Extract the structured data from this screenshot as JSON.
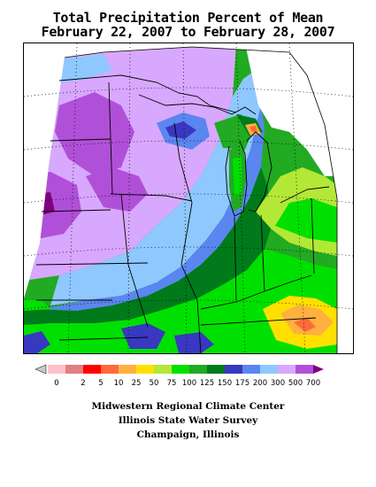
{
  "title": {
    "line1": "Total Precipitation Percent of Mean",
    "line2": "February 22, 2007 to February 28, 2007"
  },
  "legend": {
    "items": [
      {
        "label": "0",
        "color": "#ffc0cb"
      },
      {
        "label": "2",
        "color": "#e08080"
      },
      {
        "label": "5",
        "color": "#ff0000"
      },
      {
        "label": "10",
        "color": "#ff6a3a"
      },
      {
        "label": "25",
        "color": "#ffb040"
      },
      {
        "label": "50",
        "color": "#ffe000"
      },
      {
        "label": "75",
        "color": "#b4e836"
      },
      {
        "label": "100",
        "color": "#00e000"
      },
      {
        "label": "125",
        "color": "#22aa22"
      },
      {
        "label": "150",
        "color": "#007a1a"
      },
      {
        "label": "175",
        "color": "#3838c0"
      },
      {
        "label": "200",
        "color": "#5a86f0"
      },
      {
        "label": "300",
        "color": "#8ec8ff"
      },
      {
        "label": "500",
        "color": "#d8a8ff"
      },
      {
        "label": "700",
        "color": "#b050d8"
      }
    ],
    "low_end_color": "#c8c8c8",
    "high_end_color": "#800080"
  },
  "credits": {
    "line1": "Midwestern Regional Climate Center",
    "line2": "Illinois State Water Survey",
    "line3": "Champaign, Illinois"
  }
}
